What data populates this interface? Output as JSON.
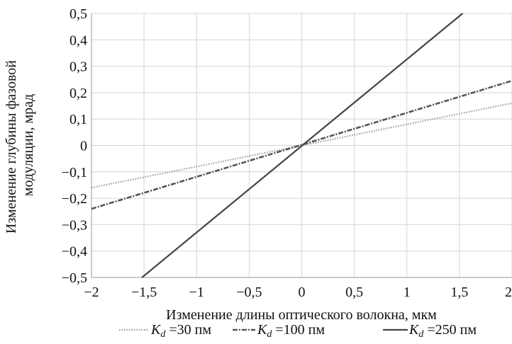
{
  "chart_data": {
    "type": "line",
    "title": "",
    "xlabel": "Изменение длины оптического волокна, мкм",
    "ylabel_lines": [
      "Изменение глубины фазовой",
      "модуляции, мрад"
    ],
    "xlim": [
      -2,
      2
    ],
    "ylim": [
      -0.5,
      0.5
    ],
    "x_ticks": [
      -2,
      -1.5,
      -1,
      -0.5,
      0,
      0.5,
      1,
      1.5,
      2
    ],
    "x_tick_labels": [
      "−2",
      "−1,5",
      "−1",
      "−0,5",
      "0",
      "0,5",
      "1",
      "1,5",
      "2"
    ],
    "y_ticks": [
      0.5,
      0.4,
      0.3,
      0.2,
      0.1,
      0,
      -0.1,
      -0.2,
      -0.3,
      -0.4,
      -0.5
    ],
    "y_tick_labels": [
      "0,5",
      "0,4",
      "0,3",
      "0,2",
      "0,1",
      "0",
      "−0,1",
      "−0,2",
      "−0,3",
      "−0,4",
      "−0,5"
    ],
    "grid": true,
    "legend_position": "bottom",
    "series": [
      {
        "legend_symbol": "K",
        "legend_subscript": "d",
        "legend_value": "=30 пм",
        "style": "dotted",
        "color": "#9a9a9a",
        "x": [
          -2,
          2
        ],
        "y": [
          -0.16,
          0.16
        ]
      },
      {
        "legend_symbol": "K",
        "legend_subscript": "d",
        "legend_value": "=100 пм",
        "style": "dashed",
        "color": "#555555",
        "x": [
          -2,
          2
        ],
        "y": [
          -0.24,
          0.245
        ]
      },
      {
        "legend_symbol": "K",
        "legend_subscript": "d",
        "legend_value": "=250 пм",
        "style": "solid",
        "color": "#444444",
        "x": [
          -1.52,
          1.53
        ],
        "y": [
          -0.5,
          0.5
        ]
      }
    ]
  }
}
